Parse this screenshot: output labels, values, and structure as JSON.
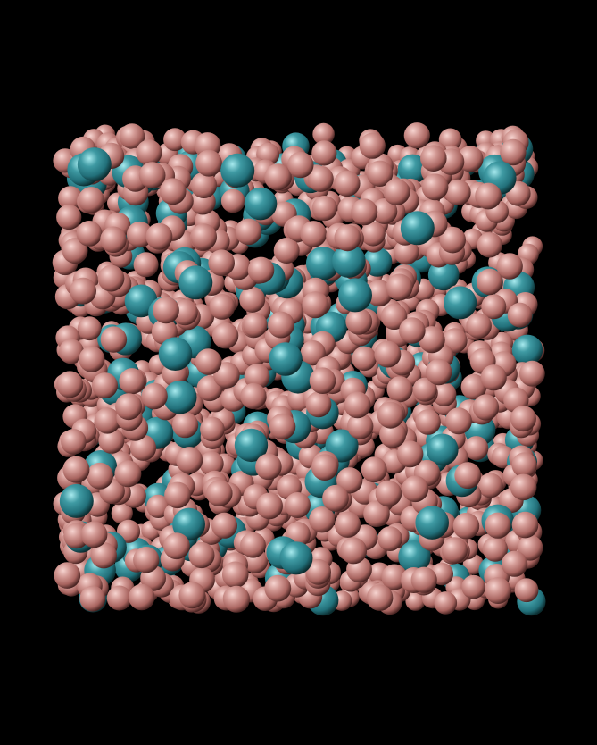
{
  "scene": {
    "background_color": "#000000",
    "subject": "molecular-dynamics-particle-box",
    "species": [
      {
        "id": "pink",
        "color": "#c98a86",
        "highlight": "#f6d4d0",
        "shadow": "#5a2f2c"
      },
      {
        "id": "teal",
        "color": "#2f8a93",
        "highlight": "#9fe3e8",
        "shadow": "#123c40"
      }
    ],
    "teal_fraction": 0.13,
    "particle_count": 1500
  }
}
